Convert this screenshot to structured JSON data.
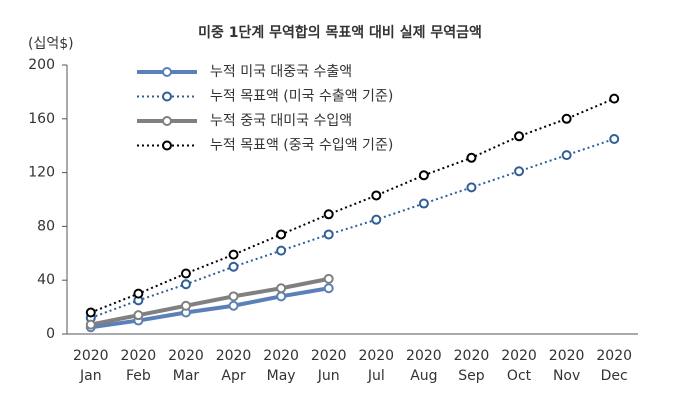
{
  "chart_data": {
    "type": "line",
    "title": "미중 1단계 무역합의 목표액 대비 실제 무역금액",
    "y_label": "(십억$)",
    "categories": [
      "2020 Jan",
      "2020 Feb",
      "2020 Mar",
      "2020 Apr",
      "2020 May",
      "2020 Jun",
      "2020 Jul",
      "2020 Aug",
      "2020 Sep",
      "2020 Oct",
      "2020 Nov",
      "2020 Dec"
    ],
    "series": [
      {
        "name": "누적 미국 대중국 수출액",
        "color": "#5b80b8",
        "style": "solid",
        "values": [
          5,
          10,
          16,
          21,
          28,
          34,
          null,
          null,
          null,
          null,
          null,
          null
        ]
      },
      {
        "name": "누적 목표액 (미국 수출액 기준)",
        "color": "#2f5f96",
        "style": "dotted",
        "values": [
          12,
          25,
          37,
          50,
          62,
          74,
          85,
          97,
          109,
          121,
          133,
          145
        ]
      },
      {
        "name": "누적 중국 대미국 수입액",
        "color": "#808080",
        "style": "solid",
        "values": [
          7,
          14,
          21,
          28,
          34,
          41,
          null,
          null,
          null,
          null,
          null,
          null
        ]
      },
      {
        "name": "누적 목표액 (중국 수입액 기준)",
        "color": "#000000",
        "style": "dotted",
        "values": [
          16,
          30,
          45,
          59,
          74,
          89,
          103,
          118,
          131,
          147,
          160,
          175
        ]
      }
    ],
    "ylim": [
      0,
      200
    ],
    "yticks": [
      0,
      40,
      80,
      120,
      160,
      200
    ],
    "grid": false,
    "legend": "upper left"
  }
}
